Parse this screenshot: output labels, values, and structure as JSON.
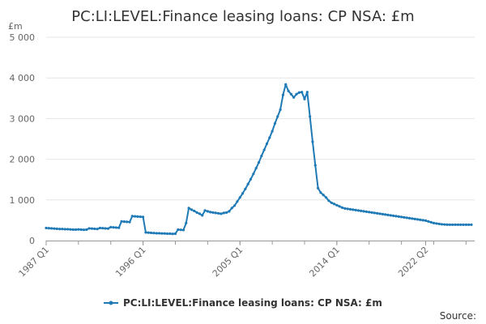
{
  "chart_data": {
    "type": "line",
    "title": "PC:LI:LEVEL:Finance leasing loans: CP NSA: £m",
    "ylabel": "£m",
    "ylim": [
      0,
      5000
    ],
    "y_ticks": [
      0,
      1000,
      2000,
      3000,
      4000,
      5000
    ],
    "y_tick_labels": [
      "0",
      "1 000",
      "2 000",
      "3 000",
      "4 000",
      "5 000"
    ],
    "x_tick_labels": [
      "1987 Q1",
      "1996 Q1",
      "2005 Q1",
      "2014 Q1",
      "2022 Q2"
    ],
    "x_tick_positions": [
      0,
      36,
      72,
      108,
      141
    ],
    "grid": true,
    "legend_position": "bottom",
    "line_color": "#1f7ab6",
    "series": [
      {
        "name": "PC:LI:LEVEL:Finance leasing loans: CP NSA: £m",
        "x_start": "1987 Q1",
        "frequency": "quarterly",
        "values": [
          310,
          305,
          300,
          295,
          290,
          285,
          285,
          280,
          280,
          275,
          270,
          270,
          275,
          270,
          265,
          270,
          300,
          295,
          290,
          285,
          310,
          305,
          300,
          295,
          330,
          325,
          320,
          315,
          470,
          465,
          460,
          455,
          600,
          595,
          590,
          585,
          580,
          200,
          195,
          190,
          185,
          180,
          180,
          175,
          175,
          170,
          170,
          165,
          170,
          270,
          265,
          260,
          430,
          800,
          760,
          730,
          690,
          660,
          620,
          740,
          720,
          700,
          690,
          680,
          670,
          660,
          680,
          690,
          720,
          800,
          860,
          960,
          1060,
          1160,
          1270,
          1390,
          1510,
          1640,
          1780,
          1920,
          2080,
          2230,
          2380,
          2530,
          2690,
          2880,
          3050,
          3220,
          3580,
          3840,
          3680,
          3600,
          3520,
          3600,
          3640,
          3650,
          3480,
          3650,
          3050,
          2430,
          1850,
          1290,
          1180,
          1120,
          1060,
          980,
          930,
          900,
          870,
          840,
          810,
          790,
          780,
          770,
          760,
          750,
          740,
          730,
          720,
          710,
          700,
          690,
          680,
          670,
          660,
          650,
          640,
          630,
          620,
          610,
          600,
          590,
          580,
          570,
          560,
          550,
          540,
          530,
          520,
          510,
          500,
          490,
          470,
          450,
          430,
          420,
          410,
          400,
          395,
          392,
          390,
          390,
          390,
          390,
          390,
          390,
          390,
          390,
          390
        ]
      }
    ]
  },
  "footer": {
    "source_label": "Source:"
  }
}
